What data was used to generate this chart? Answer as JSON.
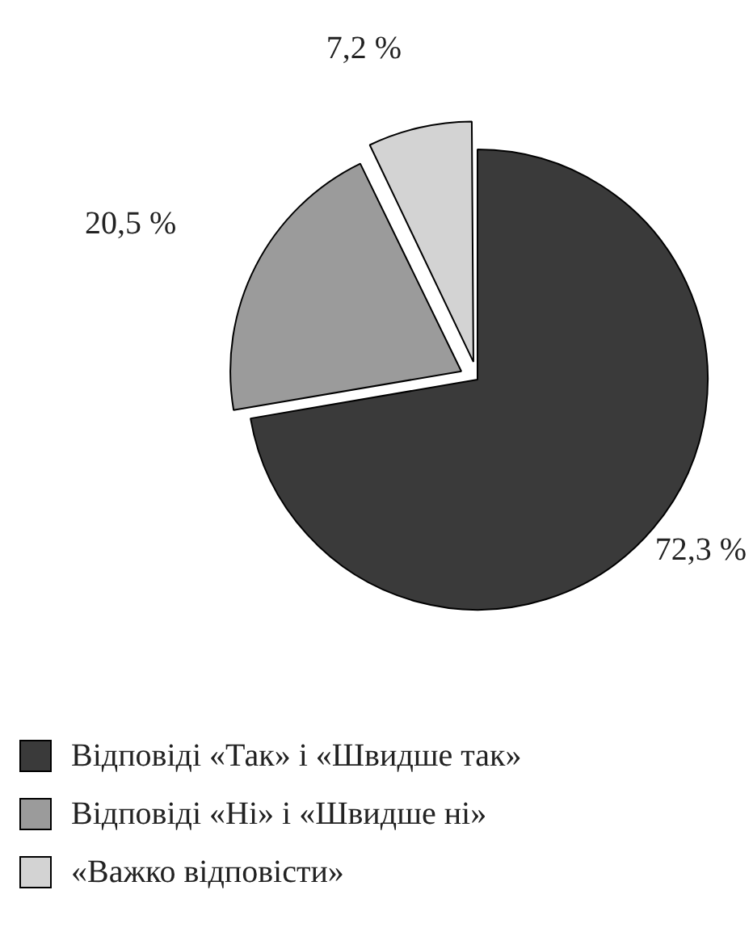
{
  "chart_data": {
    "type": "pie",
    "categories": [
      "Відповіді «Так» і «Швидше так»",
      "Відповіді «Ні» і «Швидше ні»",
      "«Важко відповісти»"
    ],
    "values": [
      72.3,
      20.5,
      7.2
    ],
    "value_labels": [
      "72,3 %",
      "20,5 %",
      "7,2 %"
    ],
    "colors": [
      "#3a3a3a",
      "#9b9b9b",
      "#d3d3d3"
    ],
    "legend": "bottom"
  }
}
